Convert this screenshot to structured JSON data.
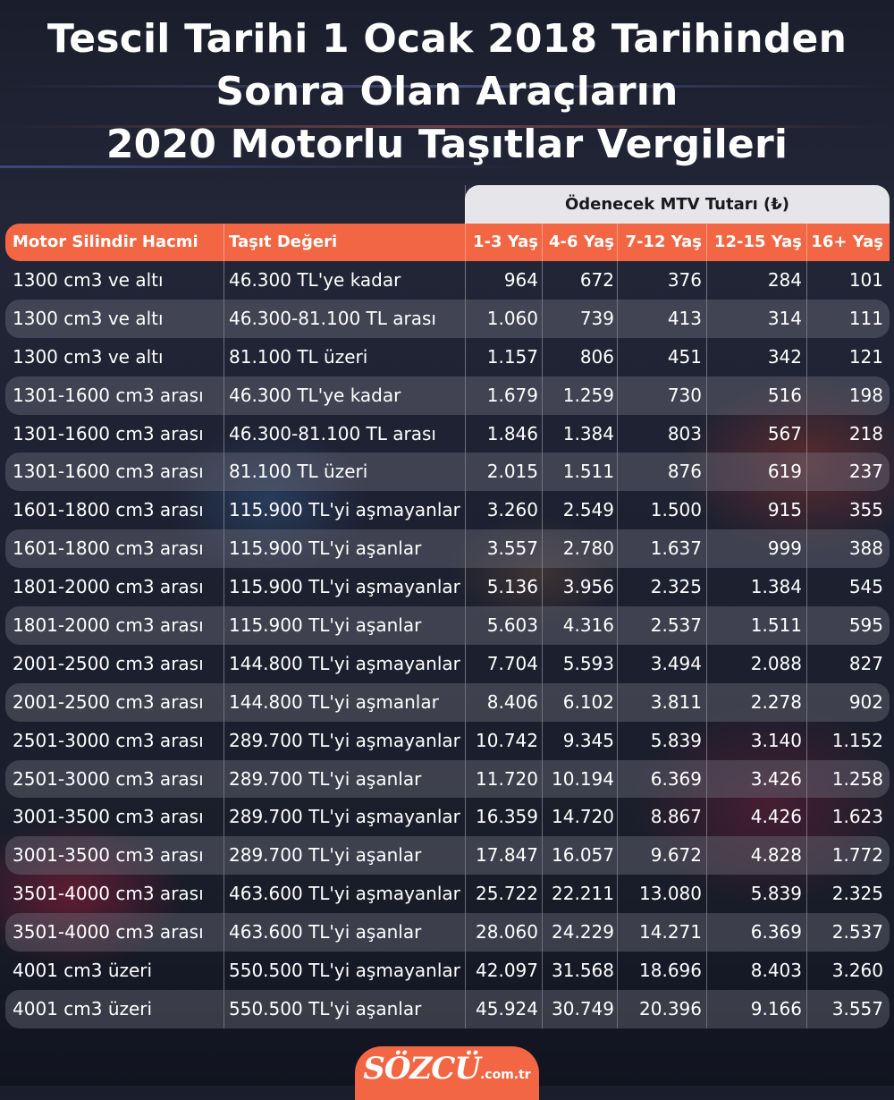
{
  "title": {
    "line1": "Tescil Tarihi 1 Ocak 2018 Tarihinden",
    "line2": "Sonra Olan Araçların",
    "line3": "2020 Motorlu Taşıtlar Vergileri"
  },
  "mtv_header": "Ödenecek MTV Tutarı (₺)",
  "columns": {
    "motor": "Motor Silindir Hacmi",
    "deger": "Taşıt Değeri",
    "y1": "1-3 Yaş",
    "y2": "4-6 Yaş",
    "y3": "7-12 Yaş",
    "y4": "12-15 Yaş",
    "y5": "16+ Yaş"
  },
  "rows": [
    {
      "motor": "1300 cm3 ve altı",
      "deger": "46.300 TL'ye kadar",
      "y1": "964",
      "y2": "672",
      "y3": "376",
      "y4": "284",
      "y5": "101"
    },
    {
      "motor": "1300 cm3 ve altı",
      "deger": "46.300-81.100 TL arası",
      "y1": "1.060",
      "y2": "739",
      "y3": "413",
      "y4": "314",
      "y5": "111"
    },
    {
      "motor": "1300 cm3 ve altı",
      "deger": "81.100 TL üzeri",
      "y1": "1.157",
      "y2": "806",
      "y3": "451",
      "y4": "342",
      "y5": "121"
    },
    {
      "motor": "1301-1600 cm3 arası",
      "deger": "46.300 TL'ye kadar",
      "y1": "1.679",
      "y2": "1.259",
      "y3": "730",
      "y4": "516",
      "y5": "198"
    },
    {
      "motor": "1301-1600 cm3 arası",
      "deger": "46.300-81.100 TL arası",
      "y1": "1.846",
      "y2": "1.384",
      "y3": "803",
      "y4": "567",
      "y5": "218"
    },
    {
      "motor": "1301-1600 cm3 arası",
      "deger": "81.100 TL üzeri",
      "y1": "2.015",
      "y2": "1.511",
      "y3": "876",
      "y4": "619",
      "y5": "237"
    },
    {
      "motor": "1601-1800 cm3 arası",
      "deger": "115.900 TL'yi aşmayanlar",
      "y1": "3.260",
      "y2": "2.549",
      "y3": "1.500",
      "y4": "915",
      "y5": "355"
    },
    {
      "motor": "1601-1800 cm3 arası",
      "deger": "115.900 TL'yi aşanlar",
      "y1": "3.557",
      "y2": "2.780",
      "y3": "1.637",
      "y4": "999",
      "y5": "388"
    },
    {
      "motor": "1801-2000 cm3 arası",
      "deger": "115.900 TL'yi aşmayanlar",
      "y1": "5.136",
      "y2": "3.956",
      "y3": "2.325",
      "y4": "1.384",
      "y5": "545"
    },
    {
      "motor": "1801-2000 cm3 arası",
      "deger": "115.900 TL'yi aşanlar",
      "y1": "5.603",
      "y2": "4.316",
      "y3": "2.537",
      "y4": "1.511",
      "y5": "595"
    },
    {
      "motor": "2001-2500 cm3 arası",
      "deger": "144.800 TL'yi aşmayanlar",
      "y1": "7.704",
      "y2": "5.593",
      "y3": "3.494",
      "y4": "2.088",
      "y5": "827"
    },
    {
      "motor": "2001-2500 cm3 arası",
      "deger": "144.800 TL'yi aşmanlar",
      "y1": "8.406",
      "y2": "6.102",
      "y3": "3.811",
      "y4": "2.278",
      "y5": "902"
    },
    {
      "motor": "2501-3000 cm3 arası",
      "deger": "289.700 TL'yi aşmayanlar",
      "y1": "10.742",
      "y2": "9.345",
      "y3": "5.839",
      "y4": "3.140",
      "y5": "1.152"
    },
    {
      "motor": "2501-3000 cm3 arası",
      "deger": "289.700 TL'yi aşanlar",
      "y1": "11.720",
      "y2": "10.194",
      "y3": "6.369",
      "y4": "3.426",
      "y5": "1.258"
    },
    {
      "motor": "3001-3500 cm3 arası",
      "deger": "289.700 TL'yi aşmayanlar",
      "y1": "16.359",
      "y2": "14.720",
      "y3": "8.867",
      "y4": "4.426",
      "y5": "1.623"
    },
    {
      "motor": "3001-3500 cm3 arası",
      "deger": "289.700 TL'yi aşanlar",
      "y1": "17.847",
      "y2": "16.057",
      "y3": "9.672",
      "y4": "4.828",
      "y5": "1.772"
    },
    {
      "motor": "3501-4000 cm3 arası",
      "deger": "463.600 TL'yi aşmayanlar",
      "y1": "25.722",
      "y2": "22.211",
      "y3": "13.080",
      "y4": "5.839",
      "y5": "2.325"
    },
    {
      "motor": "3501-4000 cm3 arası",
      "deger": "463.600 TL'yi aşanlar",
      "y1": "28.060",
      "y2": "24.229",
      "y3": "14.271",
      "y4": "6.369",
      "y5": "2.537"
    },
    {
      "motor": "4001 cm3 üzeri",
      "deger": "550.500 TL'yi aşmayanlar",
      "y1": "42.097",
      "y2": "31.568",
      "y3": "18.696",
      "y4": "8.403",
      "y5": "3.260"
    },
    {
      "motor": "4001 cm3 üzeri",
      "deger": "550.500 TL'yi aşanlar",
      "y1": "45.924",
      "y2": "30.749",
      "y3": "20.396",
      "y4": "9.166",
      "y5": "3.557"
    }
  ],
  "logo": {
    "main": "SÖZCÜ",
    "sub": ".com.tr"
  },
  "colors": {
    "accent": "#f26644",
    "mtv_header_bg": "#e6e6ea"
  }
}
